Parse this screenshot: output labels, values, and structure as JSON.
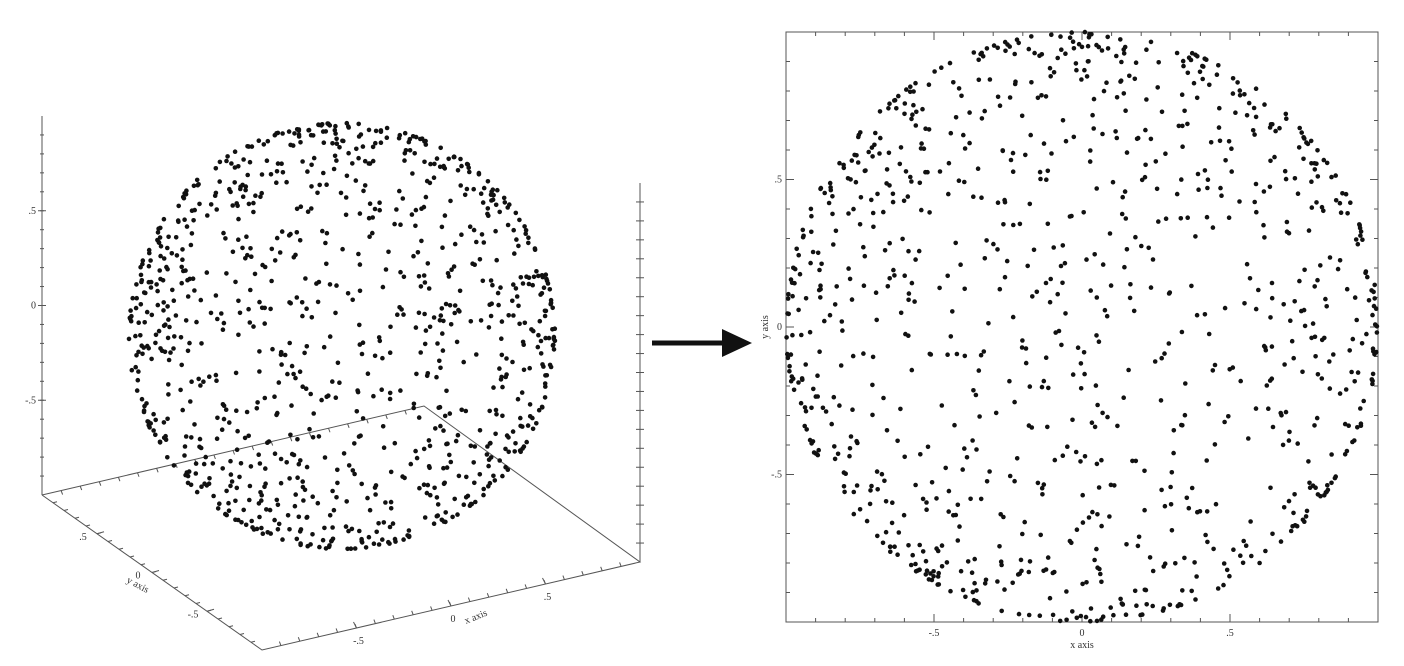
{
  "chart_data": [
    {
      "type": "scatter",
      "projection": "3d",
      "title": "",
      "xlabel": "x axis",
      "ylabel": "y axis",
      "zlabel": "",
      "xlim": [
        -1,
        1
      ],
      "ylim": [
        -1,
        1
      ],
      "zlim": [
        -1,
        1
      ],
      "x_ticks": [
        "-.5",
        "0",
        ".5"
      ],
      "y_ticks": [
        "-.5",
        "0",
        ".5"
      ],
      "z_ticks": [
        "-.5",
        "0",
        ".5"
      ],
      "grid": false,
      "legend": "none",
      "point_count": 1000,
      "point_color": "#111111",
      "series": [
        {
          "distribution": "uniform on unit sphere surface",
          "points": []
        }
      ]
    },
    {
      "type": "scatter",
      "title": "",
      "xlabel": "x axis",
      "ylabel": "y axis",
      "xlim": [
        -1,
        1
      ],
      "ylim": [
        -1,
        1
      ],
      "x_ticks": [
        "-.5",
        "0",
        ".5"
      ],
      "y_ticks": [
        "-.5",
        "0",
        ".5"
      ],
      "grid": false,
      "legend": "none",
      "point_count": 1000,
      "point_color": "#111111",
      "series": [
        {
          "distribution": "projection of sphere points onto x-y plane",
          "points": []
        }
      ]
    }
  ],
  "arrow": {
    "icon": "right-arrow-icon",
    "color": "#111111"
  }
}
